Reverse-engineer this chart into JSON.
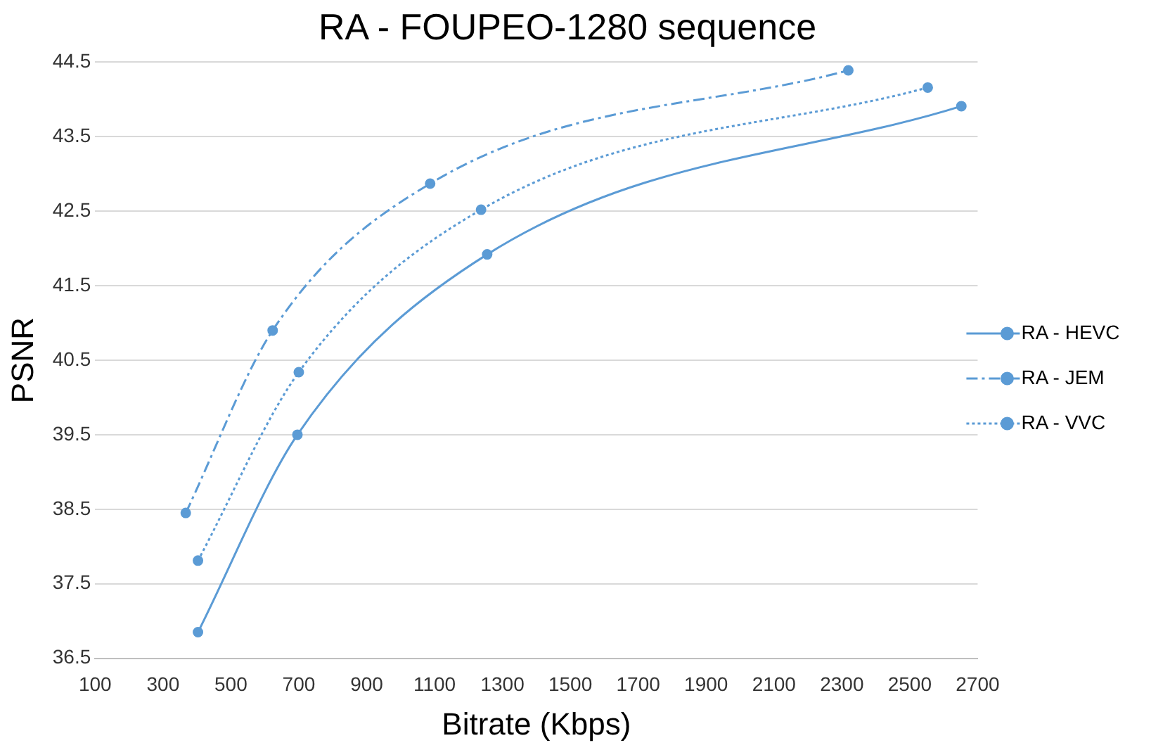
{
  "chart_data": {
    "type": "line",
    "title": "RA - FOUPEO-1280 sequence",
    "xlabel": "Bitrate (Kbps)",
    "ylabel": "PSNR",
    "series": [
      {
        "name": "RA - HEVC",
        "color": "#5b9bd5",
        "line_style": "solid",
        "x": [
          403,
          696,
          1255,
          2652
        ],
        "values": [
          36.85,
          39.5,
          41.92,
          43.91
        ]
      },
      {
        "name": "RA - JEM",
        "color": "#5b9bd5",
        "line_style": "dashed",
        "x": [
          367,
          623,
          1087,
          2319
        ],
        "values": [
          38.45,
          40.9,
          42.87,
          44.39
        ]
      },
      {
        "name": "RA - VVC",
        "color": "#5b9bd5",
        "line_style": "dotted",
        "x": [
          403,
          700,
          1237,
          2553
        ],
        "values": [
          37.81,
          40.34,
          42.52,
          44.16
        ]
      }
    ],
    "xlim": [
      100,
      2700
    ],
    "xticks": [
      100,
      300,
      500,
      700,
      900,
      1100,
      1300,
      1500,
      1700,
      1900,
      2100,
      2300,
      2500,
      2700
    ],
    "ylim": [
      36.5,
      44.5
    ],
    "yticks": [
      36.5,
      37.5,
      38.5,
      39.5,
      40.5,
      41.5,
      42.5,
      43.5,
      44.5
    ],
    "grid": "y",
    "legend": "right",
    "marker": "circle"
  }
}
